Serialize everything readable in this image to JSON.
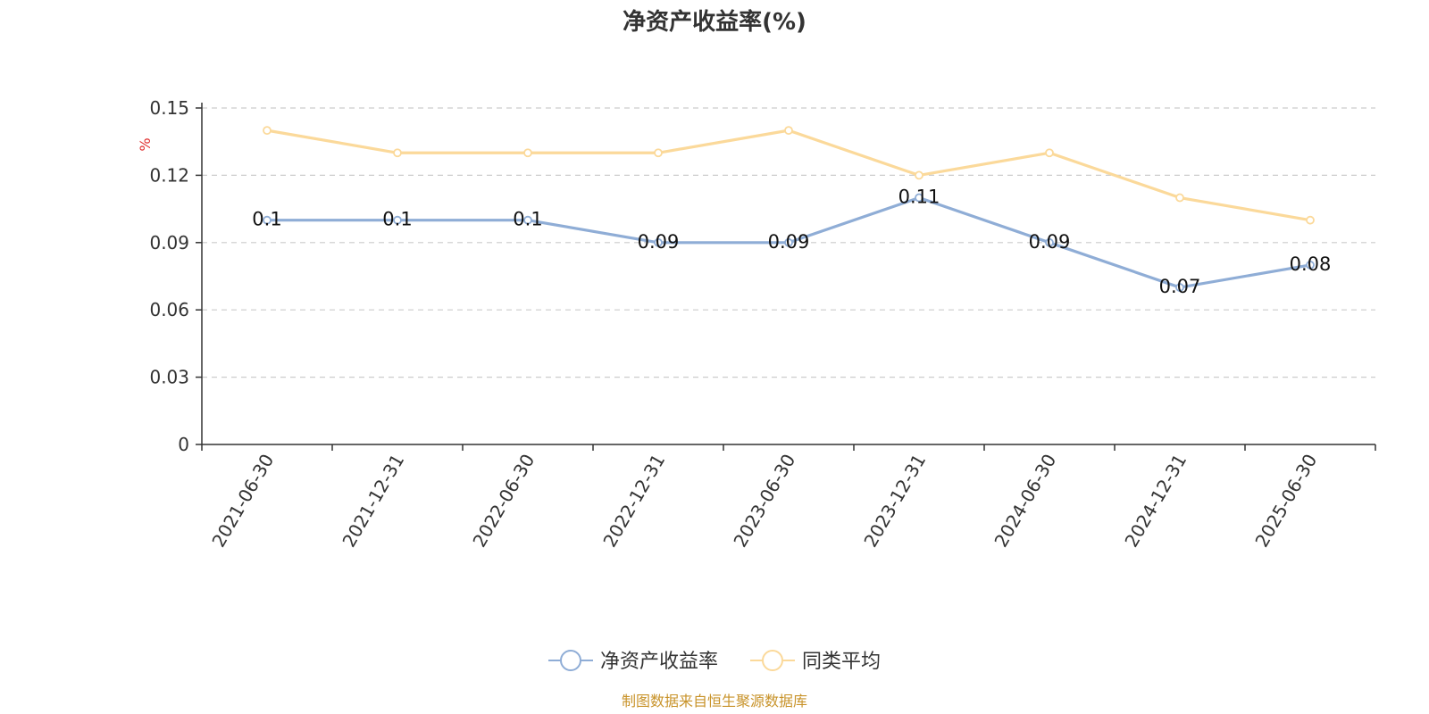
{
  "chart_data": {
    "type": "line",
    "title": "净资产收益率(%)",
    "ylabel": "%",
    "xlabel": "",
    "categories": [
      "2021-06-30",
      "2021-12-31",
      "2022-06-30",
      "2022-12-31",
      "2023-06-30",
      "2023-12-31",
      "2024-06-30",
      "2024-12-31",
      "2025-06-30"
    ],
    "ylim": [
      0,
      0.15
    ],
    "yticks": [
      "0",
      "0.03",
      "0.06",
      "0.09",
      "0.12",
      "0.15"
    ],
    "grid": true,
    "legend_position": "bottom-center",
    "series": [
      {
        "name": "净资产收益率",
        "color": "#8fadd6",
        "values": [
          0.1,
          0.1,
          0.1,
          0.09,
          0.09,
          0.11,
          0.09,
          0.07,
          0.08
        ],
        "labels": [
          "0.1",
          "0.1",
          "0.1",
          "0.09",
          "0.09",
          "0.11",
          "0.09",
          "0.07",
          "0.08"
        ]
      },
      {
        "name": "同类平均",
        "color": "#fbd99a",
        "values": [
          0.14,
          0.13,
          0.13,
          0.13,
          0.14,
          0.12,
          0.13,
          0.11,
          0.1
        ]
      }
    ]
  },
  "colors": {
    "unit_label": "#e03030",
    "source_text": "#c8932a",
    "grid": "#cccccc",
    "axis": "#333333"
  },
  "source_note": "制图数据来自恒生聚源数据库"
}
